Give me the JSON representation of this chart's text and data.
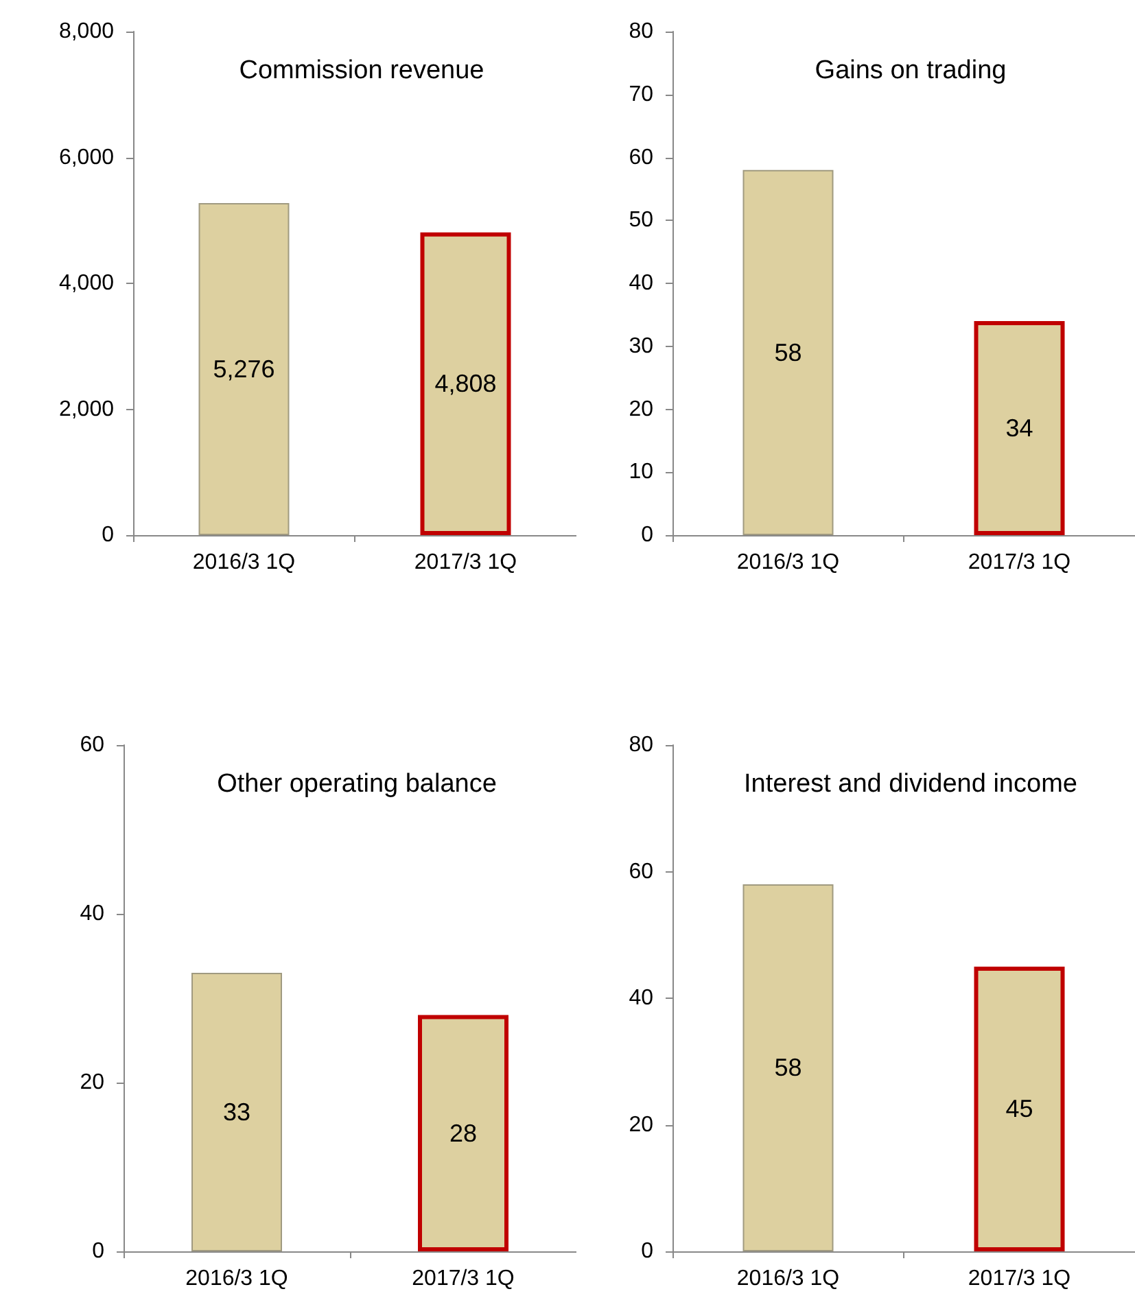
{
  "chart_data": [
    {
      "type": "bar",
      "title": "Commission revenue",
      "categories": [
        "2016/3 1Q",
        "2017/3 1Q"
      ],
      "values": [
        5276,
        4808
      ],
      "value_labels": [
        "5,276",
        "4,808"
      ],
      "color": "#ddd0a0",
      "ylim": [
        0,
        8000
      ],
      "yticks": [
        0,
        {
          "value": 2000,
          "label": "2,000"
        },
        {
          "value": 4000,
          "label": "4,000"
        },
        {
          "value": 6000,
          "label": "6,000"
        },
        {
          "value": 8000,
          "label": "8,000"
        }
      ]
    },
    {
      "type": "bar",
      "title": "Gains on trading",
      "categories": [
        "2016/3 1Q",
        "2017/3 1Q"
      ],
      "values": [
        58,
        34
      ],
      "data_labels": true,
      "color": "#ddd0a0",
      "ylim": [
        0,
        80
      ],
      "yticks": [
        0,
        10,
        20,
        30,
        40,
        50,
        60,
        70,
        80
      ]
    },
    {
      "type": "bar",
      "title": "Other operating balance",
      "categories": [
        "2016/3 1Q",
        "2017/3 1Q"
      ],
      "values": [
        33,
        28
      ],
      "data_labels": true,
      "color": "#ddd0a0",
      "ylim": [
        0,
        60
      ],
      "yticks": [
        0,
        20,
        40,
        60
      ]
    },
    {
      "type": "bar",
      "title": "Interest and dividend income",
      "categories": [
        "2016/3 1Q",
        "2017/3 1Q"
      ],
      "values": [
        58,
        45
      ],
      "data_labels": true,
      "color": "#ddd0a0",
      "ylim": [
        0,
        80
      ],
      "yticks": [
        0,
        20,
        40,
        60,
        80
      ]
    }
  ]
}
